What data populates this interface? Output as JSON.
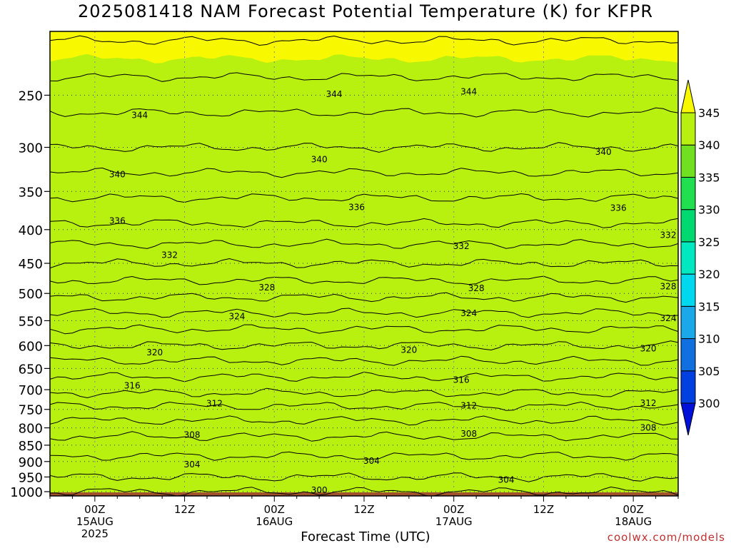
{
  "title": "2025081418 NAM Forecast Potential Temperature (K) for KFPR",
  "credit": "coolwx.com/models",
  "chart_data": {
    "type": "heatmap",
    "title": "2025081418 NAM Forecast Potential Temperature (K) for KFPR",
    "xlabel": "Forecast Time (UTC)",
    "ylabel": "",
    "y_scale": "log",
    "ylim": [
      1015,
      200
    ],
    "y_ticks": [
      250,
      300,
      350,
      400,
      450,
      500,
      550,
      600,
      650,
      700,
      750,
      800,
      850,
      900,
      950,
      1000
    ],
    "x_ticks": [
      {
        "hour": 6,
        "label": "00Z",
        "sub": [
          "15AUG",
          "2025"
        ]
      },
      {
        "hour": 18,
        "label": "12Z",
        "sub": []
      },
      {
        "hour": 30,
        "label": "00Z",
        "sub": [
          "16AUG"
        ]
      },
      {
        "hour": 42,
        "label": "12Z",
        "sub": []
      },
      {
        "hour": 54,
        "label": "00Z",
        "sub": [
          "17AUG"
        ]
      },
      {
        "hour": 66,
        "label": "12Z",
        "sub": []
      },
      {
        "hour": 78,
        "label": "00Z",
        "sub": [
          "18AUG"
        ]
      }
    ],
    "xlim": [
      0,
      84
    ],
    "grid": true,
    "colorbar": {
      "labels": [
        "300",
        "305",
        "310",
        "315",
        "320",
        "325",
        "330",
        "335",
        "340",
        "345"
      ],
      "colors": [
        "#0010d8",
        "#0040e0",
        "#1070e0",
        "#1aa8e8",
        "#00d8f0",
        "#00e8c0",
        "#00d870",
        "#20e050",
        "#70e020",
        "#b8f010",
        "#f8f800"
      ]
    },
    "theta_profile": [
      {
        "p": 1000,
        "theta": 302
      },
      {
        "p": 950,
        "theta": 304
      },
      {
        "p": 900,
        "theta": 305.5
      },
      {
        "p": 850,
        "theta": 307
      },
      {
        "p": 800,
        "theta": 309
      },
      {
        "p": 750,
        "theta": 311.5
      },
      {
        "p": 700,
        "theta": 314.5
      },
      {
        "p": 650,
        "theta": 317
      },
      {
        "p": 600,
        "theta": 320
      },
      {
        "p": 550,
        "theta": 323
      },
      {
        "p": 500,
        "theta": 326.5
      },
      {
        "p": 450,
        "theta": 330
      },
      {
        "p": 400,
        "theta": 333.5
      },
      {
        "p": 350,
        "theta": 336.5
      },
      {
        "p": 300,
        "theta": 340
      },
      {
        "p": 250,
        "theta": 343
      },
      {
        "p": 200,
        "theta": 346.5
      }
    ],
    "contour_labels": [
      {
        "text": "344",
        "hour": 12,
        "p": 268
      },
      {
        "text": "344",
        "hour": 38,
        "p": 249
      },
      {
        "text": "344",
        "hour": 56,
        "p": 247
      },
      {
        "text": "340",
        "hour": 9,
        "p": 330
      },
      {
        "text": "340",
        "hour": 36,
        "p": 313
      },
      {
        "text": "340",
        "hour": 74,
        "p": 305
      },
      {
        "text": "336",
        "hour": 9,
        "p": 388
      },
      {
        "text": "336",
        "hour": 41,
        "p": 370
      },
      {
        "text": "336",
        "hour": 76,
        "p": 371
      },
      {
        "text": "332",
        "hour": 16,
        "p": 437
      },
      {
        "text": "332",
        "hour": 55,
        "p": 424
      },
      {
        "text": "332",
        "hour": 83,
        "p": 408
      },
      {
        "text": "328",
        "hour": 29,
        "p": 490
      },
      {
        "text": "328",
        "hour": 57,
        "p": 491
      },
      {
        "text": "328",
        "hour": 84,
        "p": 488
      },
      {
        "text": "324",
        "hour": 25,
        "p": 542
      },
      {
        "text": "324",
        "hour": 56,
        "p": 536
      },
      {
        "text": "324",
        "hour": 84,
        "p": 545
      },
      {
        "text": "320",
        "hour": 14,
        "p": 615
      },
      {
        "text": "320",
        "hour": 48,
        "p": 609
      },
      {
        "text": "320",
        "hour": 80,
        "p": 606
      },
      {
        "text": "316",
        "hour": 11,
        "p": 690
      },
      {
        "text": "316",
        "hour": 55,
        "p": 677
      },
      {
        "text": "312",
        "hour": 22,
        "p": 735
      },
      {
        "text": "312",
        "hour": 56,
        "p": 740
      },
      {
        "text": "312",
        "hour": 80,
        "p": 734
      },
      {
        "text": "308",
        "hour": 19,
        "p": 820
      },
      {
        "text": "308",
        "hour": 56,
        "p": 817
      },
      {
        "text": "308",
        "hour": 80,
        "p": 800
      },
      {
        "text": "304",
        "hour": 19,
        "p": 910
      },
      {
        "text": "304",
        "hour": 43,
        "p": 898
      },
      {
        "text": "304",
        "hour": 61,
        "p": 960
      },
      {
        "text": "300",
        "hour": 36,
        "p": 995
      }
    ]
  }
}
